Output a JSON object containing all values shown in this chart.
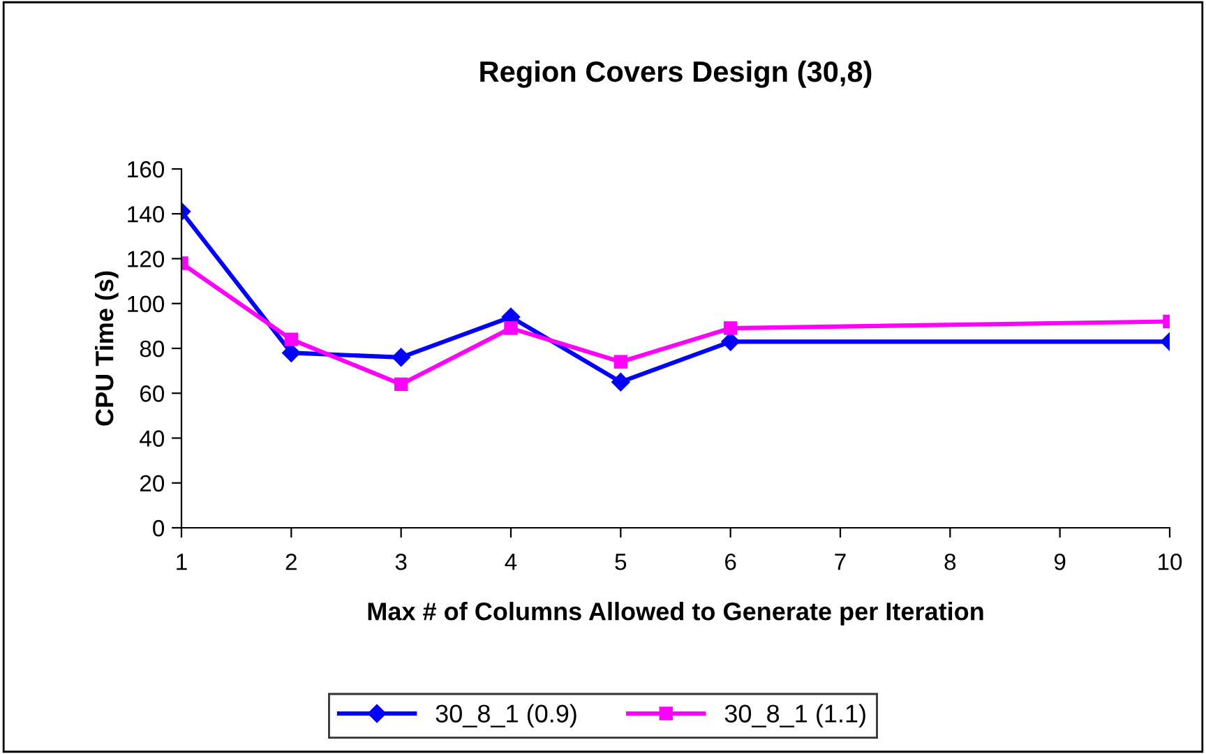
{
  "chart_data": {
    "type": "line",
    "title": "Region Covers Design (30,8)",
    "xlabel": "Max # of Columns Allowed to Generate per Iteration",
    "ylabel": "CPU Time (s)",
    "x": [
      1,
      2,
      3,
      4,
      5,
      6,
      10
    ],
    "series": [
      {
        "name": "30_8_1 (0.9)",
        "color": "#0000ff",
        "marker": "diamond",
        "values": [
          141,
          78,
          76,
          94,
          65,
          83,
          83
        ]
      },
      {
        "name": "30_8_1 (1.1)",
        "color": "#ff00ff",
        "marker": "square",
        "values": [
          118,
          84,
          64,
          89,
          74,
          89,
          92
        ]
      }
    ],
    "xlim": [
      1,
      10
    ],
    "xticks": [
      1,
      2,
      3,
      4,
      5,
      6,
      7,
      8,
      9,
      10
    ],
    "ylim": [
      0,
      160
    ],
    "yticks": [
      0,
      20,
      40,
      60,
      80,
      100,
      120,
      140,
      160
    ],
    "grid": false,
    "legend": "bottom"
  }
}
